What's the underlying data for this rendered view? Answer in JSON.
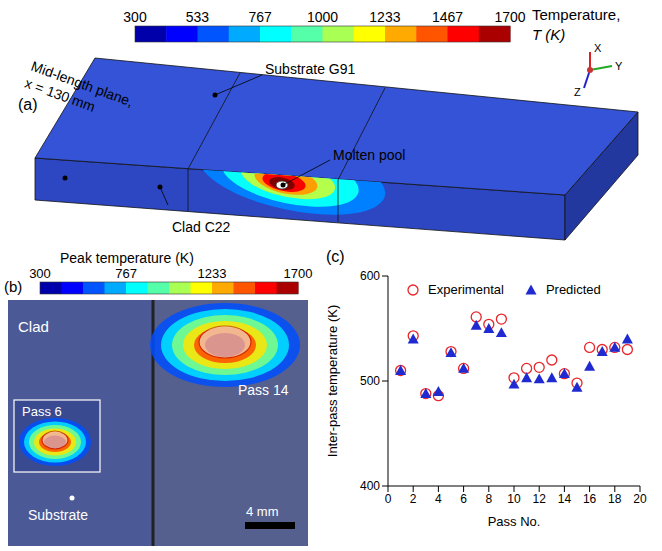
{
  "panel_a": {
    "letter": "(a)",
    "colorbar": {
      "title_lines": [
        "Temperature,",
        "T (K)"
      ],
      "range": [
        300,
        1700
      ],
      "ticks": [
        300,
        533,
        767,
        1000,
        1233,
        1467,
        1700
      ]
    },
    "labels": {
      "substrate": "Substrate G91",
      "molten_pool": "Molten pool",
      "mid_plane": [
        "Mid-length plane,",
        "x = 130 mm"
      ],
      "clad": "Clad C22"
    },
    "axes": [
      "X",
      "Y",
      "Z"
    ]
  },
  "panel_b": {
    "letter": "(b)",
    "colorbar": {
      "title": "Peak temperature (K)",
      "range": [
        300,
        1700
      ],
      "ticks": [
        300,
        767,
        1233,
        1700
      ]
    },
    "labels": {
      "clad": "Clad",
      "pass_a": "Pass 6",
      "pass_b": "Pass 14",
      "substrate": "Substrate",
      "scale_bar": "4 mm"
    }
  },
  "chart_data": {
    "letter": "(c)",
    "type": "scatter",
    "x_label": "Pass No.",
    "y_label": "Inter-pass temperature (K)",
    "x": [
      1,
      2,
      3,
      4,
      5,
      6,
      7,
      8,
      9,
      10,
      11,
      12,
      13,
      14,
      15,
      16,
      17,
      18,
      19
    ],
    "series": [
      {
        "name": "Experimental",
        "color": "#e8252a",
        "marker": "circle",
        "values": [
          510,
          543,
          488,
          486,
          528,
          512,
          561,
          554,
          559,
          503,
          512,
          513,
          520,
          507,
          498,
          532,
          530,
          532,
          530
        ]
      },
      {
        "name": "Predicted",
        "color": "#1f2bd0",
        "marker": "triangle",
        "values": [
          510,
          540,
          488,
          490,
          527,
          512,
          553,
          550,
          546,
          497,
          503,
          502,
          503,
          507,
          494,
          514,
          528,
          532,
          540
        ]
      }
    ],
    "xlim": [
      0,
      20
    ],
    "xticks": [
      0,
      2,
      4,
      6,
      8,
      10,
      12,
      14,
      16,
      18,
      20
    ],
    "ylim": [
      400,
      600
    ],
    "yticks": [
      400,
      500,
      600
    ],
    "legend": "upper left"
  }
}
